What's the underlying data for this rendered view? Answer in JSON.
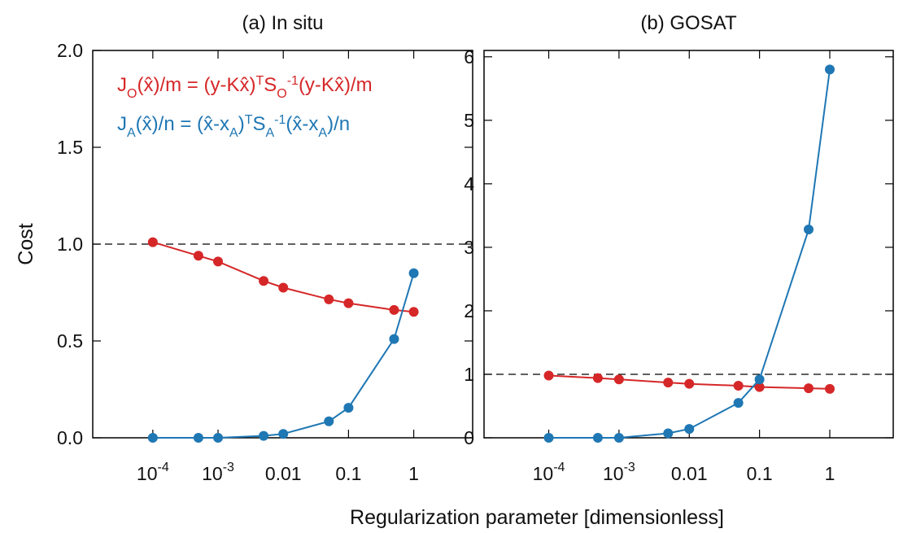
{
  "chart_data": [
    {
      "type": "line",
      "title": "(a) In situ",
      "ylabel": "Cost",
      "xscale": "log",
      "xlim": [
        1.2e-05,
        8
      ],
      "ylim": [
        0,
        2.0
      ],
      "xticks": [
        0.0001,
        0.001,
        0.01,
        0.1,
        1
      ],
      "xtick_labels": [
        {
          "base": "10",
          "exp": "-4"
        },
        {
          "base": "10",
          "exp": "-3"
        },
        {
          "base": "0.01",
          "exp": ""
        },
        {
          "base": "0.1",
          "exp": ""
        },
        {
          "base": "1",
          "exp": ""
        }
      ],
      "yticks": [
        0,
        0.5,
        1.0,
        1.5,
        2.0
      ],
      "ytick_labels": [
        "0.0",
        "0.5",
        "1.0",
        "1.5",
        "2.0"
      ],
      "reference_line": 1.0,
      "grid": false,
      "x": [
        0.0001,
        0.0005,
        0.001,
        0.005,
        0.01,
        0.05,
        0.1,
        0.5,
        1
      ],
      "series": [
        {
          "color": "#d62728",
          "values": [
            1.01,
            0.94,
            0.91,
            0.81,
            0.775,
            0.715,
            0.695,
            0.66,
            0.65
          ]
        },
        {
          "color": "#1f77b4",
          "values": [
            0.0,
            0.0,
            0.0,
            0.01,
            0.02,
            0.085,
            0.155,
            0.51,
            0.85
          ]
        }
      ],
      "legend": {
        "placement": "top-left",
        "entries": [
          {
            "color": "#d62728",
            "parts": [
              {
                "t": "J",
                "s": "n"
              },
              {
                "t": "O",
                "s": "sub"
              },
              {
                "t": "(",
                "s": "n"
              },
              {
                "t": "x",
                "s": "hat"
              },
              {
                "t": ")/m = (y-K",
                "s": "n"
              },
              {
                "t": "x",
                "s": "hat"
              },
              {
                "t": ")",
                "s": "n"
              },
              {
                "t": "T",
                "s": "sup"
              },
              {
                "t": "S",
                "s": "n"
              },
              {
                "t": "O",
                "s": "sub"
              },
              {
                "t": "-1",
                "s": "sup"
              },
              {
                "t": "(y-K",
                "s": "n"
              },
              {
                "t": "x",
                "s": "hat"
              },
              {
                "t": ")/m",
                "s": "n"
              }
            ]
          },
          {
            "color": "#1f77b4",
            "parts": [
              {
                "t": "J",
                "s": "n"
              },
              {
                "t": "A",
                "s": "sub"
              },
              {
                "t": "(",
                "s": "n"
              },
              {
                "t": "x",
                "s": "hat"
              },
              {
                "t": ")/n = (",
                "s": "n"
              },
              {
                "t": "x",
                "s": "hat"
              },
              {
                "t": "-x",
                "s": "n"
              },
              {
                "t": "A",
                "s": "sub"
              },
              {
                "t": ")",
                "s": "n"
              },
              {
                "t": "T",
                "s": "sup"
              },
              {
                "t": "S",
                "s": "n"
              },
              {
                "t": "A",
                "s": "sub"
              },
              {
                "t": "-1",
                "s": "sup"
              },
              {
                "t": "(",
                "s": "n"
              },
              {
                "t": "x",
                "s": "hat"
              },
              {
                "t": "-x",
                "s": "n"
              },
              {
                "t": "A",
                "s": "sub"
              },
              {
                "t": ")/n",
                "s": "n"
              }
            ]
          }
        ]
      }
    },
    {
      "type": "line",
      "title": "(b) GOSAT",
      "xscale": "log",
      "xlim": [
        1.2e-05,
        8
      ],
      "ylim": [
        0,
        6.1
      ],
      "xticks": [
        0.0001,
        0.001,
        0.01,
        0.1,
        1
      ],
      "xtick_labels": [
        {
          "base": "10",
          "exp": "-4"
        },
        {
          "base": "10",
          "exp": "-3"
        },
        {
          "base": "0.01",
          "exp": ""
        },
        {
          "base": "0.1",
          "exp": ""
        },
        {
          "base": "1",
          "exp": ""
        }
      ],
      "yticks": [
        0,
        1,
        2,
        3,
        4,
        5,
        6
      ],
      "ytick_labels": [
        "0",
        "1",
        "2",
        "3",
        "4",
        "5",
        "6"
      ],
      "reference_line": 1.0,
      "grid": false,
      "x": [
        0.0001,
        0.0005,
        0.001,
        0.005,
        0.01,
        0.05,
        0.1,
        0.5,
        1
      ],
      "series": [
        {
          "color": "#d62728",
          "values": [
            0.98,
            0.94,
            0.92,
            0.87,
            0.85,
            0.82,
            0.8,
            0.78,
            0.77
          ]
        },
        {
          "color": "#1f77b4",
          "values": [
            0.0,
            0.0,
            0.0,
            0.07,
            0.14,
            0.55,
            0.92,
            3.28,
            5.8
          ]
        }
      ]
    }
  ],
  "xlabel": "Regularization parameter [dimensionless]"
}
